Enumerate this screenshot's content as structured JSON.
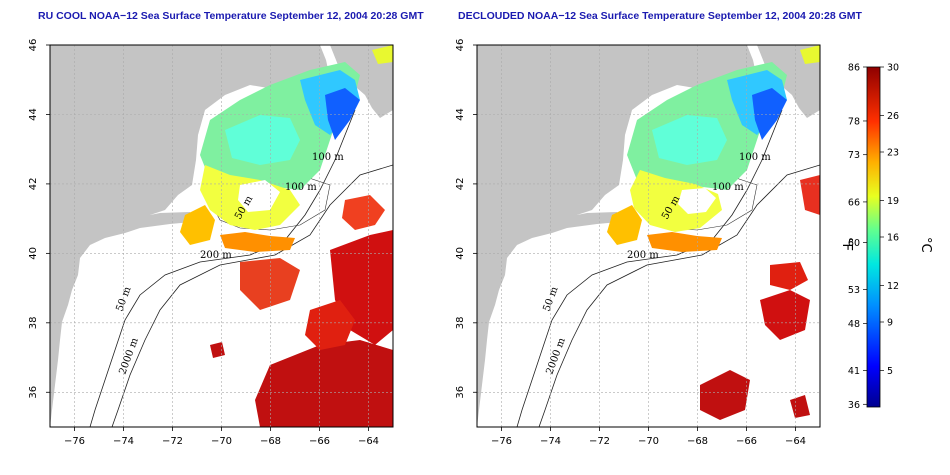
{
  "panels": [
    {
      "title": "RU COOL NOAA−12 Sea Surface Temperature September 12, 2004 20:28 GMT",
      "variant": "cool"
    },
    {
      "title": "DECLOUDED NOAA−12 Sea Surface Temperature September 12, 2004 20:28 GMT",
      "variant": "declouded"
    }
  ],
  "axes": {
    "x_ticks": [
      "−76",
      "−74",
      "−72",
      "−70",
      "−68",
      "−66",
      "−64"
    ],
    "x_values": [
      -76,
      -74,
      -72,
      -70,
      -68,
      -66,
      -64
    ],
    "y_ticks": [
      "36",
      "38",
      "40",
      "42",
      "44",
      "46"
    ],
    "y_values": [
      36,
      38,
      40,
      42,
      44,
      46
    ],
    "lon_range": [
      -77,
      -63
    ],
    "lat_range": [
      35,
      46
    ]
  },
  "contour_labels": [
    "100 m",
    "100 m",
    "50 m",
    "200 m",
    "50 m",
    "2000 m"
  ],
  "colorbar": {
    "fahrenheit_ticks": [
      "86",
      "78",
      "73",
      "66",
      "60",
      "53",
      "48",
      "41",
      "36"
    ],
    "fahrenheit_values": [
      86,
      78,
      73,
      66,
      60,
      53,
      48,
      41,
      36
    ],
    "celsius_ticks": [
      "30",
      "26",
      "23",
      "19",
      "16",
      "12",
      "9",
      "5"
    ],
    "celsius_values": [
      30,
      26,
      23,
      19,
      16,
      12,
      9,
      5
    ],
    "unit_f": "°F",
    "unit_c": "°C",
    "range_c": [
      2,
      30
    ]
  },
  "colors": {
    "land": "#c4c4c4",
    "ocean": "#ffffff",
    "title": "#1a1ab0",
    "grid": "#aaaaaa"
  }
}
